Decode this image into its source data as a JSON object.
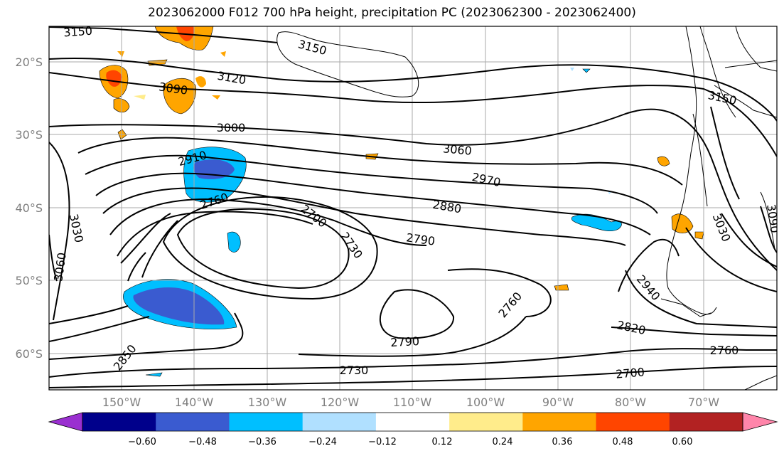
{
  "title": "2023062000 F012 700 hPa height, precipitation PC (2023062300 - 2023062400)",
  "map": {
    "lat_ticks": [
      "20°S",
      "30°S",
      "40°S",
      "50°S",
      "60°S"
    ],
    "lon_ticks": [
      "150°W",
      "140°W",
      "130°W",
      "120°W",
      "110°W",
      "100°W",
      "90°W",
      "80°W",
      "70°W"
    ],
    "contour_labels": [
      "3150",
      "3150",
      "3120",
      "3090",
      "3000",
      "3060",
      "2970",
      "2910",
      "2880",
      "2760",
      "2700",
      "2730",
      "2790",
      "2760",
      "2790",
      "2850",
      "2730",
      "2700",
      "2940",
      "2820",
      "2760",
      "3030",
      "3030",
      "3060",
      "3150",
      "3090"
    ]
  },
  "colorbar": {
    "colors": [
      "#9a2fd0",
      "#00008b",
      "#3a5bd0",
      "#00bfff",
      "#b0e0ff",
      "#ffffff",
      "#ffec8b",
      "#ffa500",
      "#ff4500",
      "#b22222",
      "#ff85aa"
    ],
    "ticks": [
      "−0.60",
      "−0.48",
      "−0.36",
      "−0.24",
      "−0.12",
      "0.12",
      "0.24",
      "0.36",
      "0.48",
      "0.60"
    ]
  }
}
